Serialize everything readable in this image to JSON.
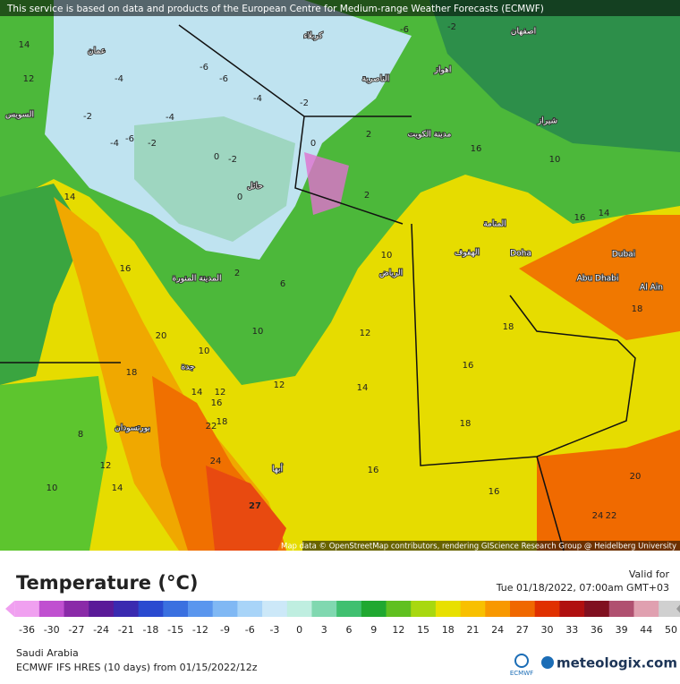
{
  "header": {
    "notice": "This service is based on data and products of the European Centre for Medium-range Weather Forecasts (ECMWF)"
  },
  "map": {
    "attribution": "Map data © OpenStreetMap contributors, rendering GIScience Research Group @ Heidelberg University",
    "cities": [
      "عمان",
      "كربلاء",
      "الناصرية",
      "اهواز",
      "اصفهان",
      "شيراز",
      "مدينة الكويت",
      "حائل",
      "المنامة",
      "الهفوف",
      "Doha",
      "Dubai",
      "Abu Dhabi",
      "Al Ain",
      "الرياض",
      "المدينة المنورة",
      "جدة",
      "بورتسودان",
      "أبها",
      "السويس"
    ],
    "temperatures": [
      14,
      12,
      -4,
      -6,
      -6,
      -4,
      -2,
      -2,
      -6,
      -2,
      -4,
      -4,
      -6,
      -2,
      0,
      -2,
      0,
      2,
      0,
      2,
      6,
      10,
      16,
      10,
      14,
      16,
      20,
      18,
      14,
      12,
      16,
      18,
      22,
      24,
      27,
      12,
      14,
      10,
      8,
      10,
      12,
      12,
      14,
      16,
      18,
      18,
      16,
      16,
      20,
      24,
      22,
      18,
      14,
      16,
      10,
      2
    ]
  },
  "legend": {
    "title": "Temperature (°C)",
    "valid_label": "Valid for",
    "valid_time": "Tue 01/18/2022, 07:00am GMT+03",
    "ticks": [
      -36,
      -30,
      -27,
      -24,
      -21,
      -18,
      -15,
      -12,
      -9,
      -6,
      -3,
      0,
      3,
      6,
      9,
      12,
      15,
      18,
      21,
      24,
      27,
      30,
      33,
      36,
      39,
      44,
      50
    ]
  },
  "footer": {
    "region": "Saudi Arabia",
    "model": "ECMWF IFS HRES (10 days) from 01/15/2022/12z",
    "ecmwf_logo": "ECMWF",
    "brand": "meteologix.com"
  }
}
